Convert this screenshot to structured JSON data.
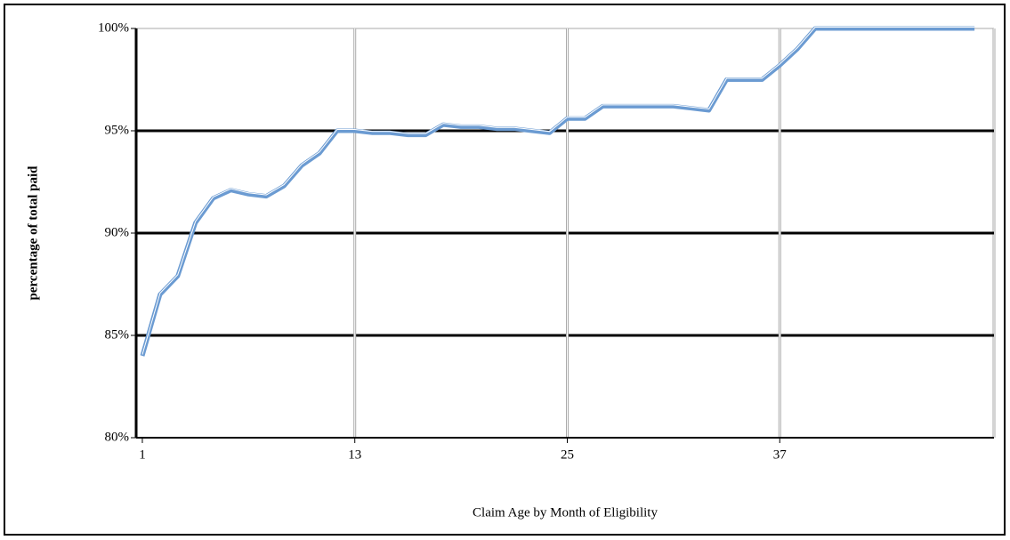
{
  "chart_data": {
    "type": "line",
    "x_label": "Claim Age by Month of Eligibility",
    "y_label": "percentage of total paid",
    "x": [
      1,
      2,
      3,
      4,
      5,
      6,
      7,
      8,
      9,
      10,
      11,
      12,
      13,
      14,
      15,
      16,
      17,
      18,
      19,
      20,
      21,
      22,
      23,
      24,
      25,
      26,
      27,
      28,
      29,
      30,
      31,
      32,
      33,
      34,
      35,
      36,
      37,
      38,
      39,
      40,
      41,
      42,
      43,
      44,
      45,
      46,
      47,
      48
    ],
    "series": [
      {
        "color": "#6b9bd2",
        "values": [
          84.0,
          87.0,
          87.9,
          90.5,
          91.7,
          92.1,
          91.9,
          91.8,
          92.3,
          93.3,
          93.9,
          95.0,
          95.0,
          94.9,
          94.9,
          94.8,
          94.8,
          95.3,
          95.2,
          95.2,
          95.1,
          95.1,
          95.0,
          94.9,
          95.6,
          95.6,
          96.2,
          96.2,
          96.2,
          96.2,
          96.2,
          96.1,
          96.0,
          97.5,
          97.5,
          97.5,
          98.2,
          99.0,
          100,
          100,
          100,
          100,
          100,
          100,
          100,
          100,
          100,
          100
        ]
      }
    ],
    "xlim": [
      0.65,
      49.1
    ],
    "xticks": [
      1,
      13,
      25,
      37
    ],
    "ylim": [
      80,
      100
    ],
    "yticks": [
      {
        "value": 80,
        "label": "80%"
      },
      {
        "value": 85,
        "label": "85%"
      },
      {
        "value": 90,
        "label": "90%"
      },
      {
        "value": 95,
        "label": "95%"
      },
      {
        "value": 100,
        "label": "100%"
      }
    ],
    "grid": true
  }
}
